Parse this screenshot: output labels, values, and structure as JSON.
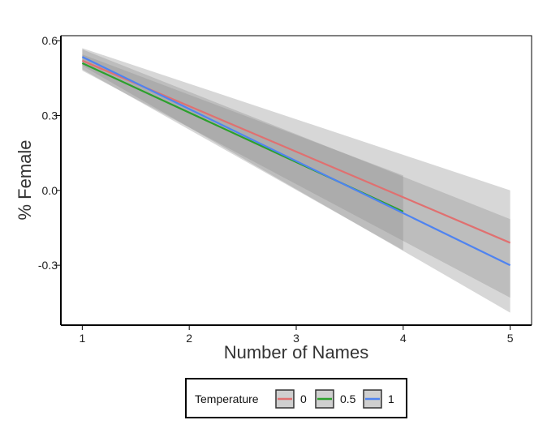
{
  "chart_data": {
    "type": "line",
    "title": "",
    "xlabel": "Number of Names",
    "ylabel": "% Female",
    "xlim": [
      0.8,
      5.2
    ],
    "ylim": [
      -0.54,
      0.62
    ],
    "x_ticks": [
      1,
      2,
      3,
      4,
      5
    ],
    "x_tick_labels": [
      "1",
      "2",
      "3",
      "4",
      "5"
    ],
    "y_ticks": [
      0.6,
      0.3,
      0.0,
      -0.3
    ],
    "y_tick_labels": [
      "0.6",
      "0.3",
      "0.0",
      "-0.3"
    ],
    "grid": false,
    "legend": {
      "title": "Temperature",
      "position": "bottom"
    },
    "series": [
      {
        "name": "0",
        "color": "#e07070",
        "x": [
          1,
          5
        ],
        "y": [
          0.52,
          -0.21
        ],
        "ci_lower": [
          0.48,
          -0.43
        ],
        "ci_upper": [
          0.57,
          0.0
        ]
      },
      {
        "name": "0.5",
        "color": "#2ca02c",
        "x": [
          1,
          4
        ],
        "y": [
          0.51,
          -0.085
        ],
        "ci_lower": [
          0.485,
          -0.24
        ],
        "ci_upper": [
          0.545,
          0.06
        ]
      },
      {
        "name": "1",
        "color": "#4f83f0",
        "x": [
          1,
          5
        ],
        "y": [
          0.535,
          -0.3
        ],
        "ci_lower": [
          0.5,
          -0.49
        ],
        "ci_upper": [
          0.565,
          -0.115
        ]
      }
    ]
  }
}
